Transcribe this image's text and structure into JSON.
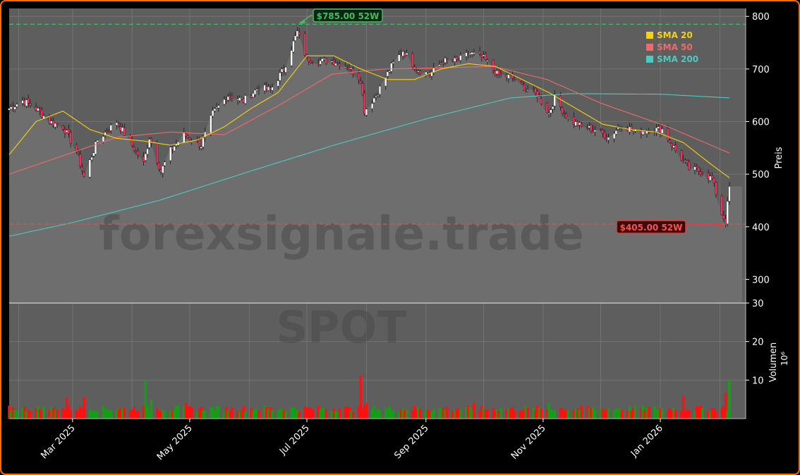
{
  "chart_data": {
    "type": "candlestick",
    "ticker_watermark": "SPOT",
    "site_watermark": "forexsignale.trade",
    "price_axis": {
      "label": "Preis",
      "ylim": [
        255,
        815
      ],
      "ticks": [
        300,
        400,
        500,
        600,
        700,
        800
      ]
    },
    "volume_axis": {
      "label": "Volumen",
      "unit_label": "10⁶",
      "ylim": [
        0,
        30
      ],
      "ticks": [
        10,
        20,
        30
      ]
    },
    "x_axis": {
      "range": [
        "2025-01-27",
        "2026-02-06"
      ],
      "ticks": [
        {
          "date": "2025-03-01",
          "label": "Mar 2025"
        },
        {
          "date": "2025-05-01",
          "label": "May 2025"
        },
        {
          "date": "2025-07-01",
          "label": "Jul 2025"
        },
        {
          "date": "2025-09-01",
          "label": "Sep 2025"
        },
        {
          "date": "2025-11-01",
          "label": "Nov 2025"
        },
        {
          "date": "2026-01-01",
          "label": "Jan 2026"
        }
      ]
    },
    "high_52w": {
      "value": 785,
      "label": "$785.00 52W",
      "date": "2025-06-26"
    },
    "low_52w": {
      "value": 405,
      "label": "$405.00 52W",
      "date": "2026-02-04"
    },
    "legend": [
      {
        "label": "SMA 20",
        "color": "#f5d10f"
      },
      {
        "label": "SMA 50",
        "color": "#f06a6a"
      },
      {
        "label": "SMA 200",
        "color": "#4dc9c2"
      }
    ],
    "close_anchors": [
      [
        "2025-01-27",
        625
      ],
      [
        "2025-02-03",
        640
      ],
      [
        "2025-02-10",
        625
      ],
      [
        "2025-02-17",
        600
      ],
      [
        "2025-02-24",
        590
      ],
      [
        "2025-03-03",
        545
      ],
      [
        "2025-03-07",
        495
      ],
      [
        "2025-03-14",
        565
      ],
      [
        "2025-03-24",
        600
      ],
      [
        "2025-03-31",
        560
      ],
      [
        "2025-04-07",
        520
      ],
      [
        "2025-04-10",
        570
      ],
      [
        "2025-04-16",
        505
      ],
      [
        "2025-04-21",
        545
      ],
      [
        "2025-04-28",
        575
      ],
      [
        "2025-05-07",
        555
      ],
      [
        "2025-05-13",
        615
      ],
      [
        "2025-05-21",
        650
      ],
      [
        "2025-05-29",
        640
      ],
      [
        "2025-06-06",
        665
      ],
      [
        "2025-06-12",
        660
      ],
      [
        "2025-06-19",
        700
      ],
      [
        "2025-06-26",
        770
      ],
      [
        "2025-07-01",
        720
      ],
      [
        "2025-07-08",
        715
      ],
      [
        "2025-07-15",
        715
      ],
      [
        "2025-07-22",
        705
      ],
      [
        "2025-07-29",
        680
      ],
      [
        "2025-07-31",
        620
      ],
      [
        "2025-08-06",
        650
      ],
      [
        "2025-08-14",
        705
      ],
      [
        "2025-08-20",
        735
      ],
      [
        "2025-08-27",
        700
      ],
      [
        "2025-09-03",
        690
      ],
      [
        "2025-09-10",
        715
      ],
      [
        "2025-09-17",
        715
      ],
      [
        "2025-09-24",
        730
      ],
      [
        "2025-10-01",
        720
      ],
      [
        "2025-10-08",
        690
      ],
      [
        "2025-10-15",
        685
      ],
      [
        "2025-10-22",
        665
      ],
      [
        "2025-10-29",
        650
      ],
      [
        "2025-11-04",
        615
      ],
      [
        "2025-11-07",
        645
      ],
      [
        "2025-11-14",
        605
      ],
      [
        "2025-11-21",
        590
      ],
      [
        "2025-11-28",
        585
      ],
      [
        "2025-12-05",
        570
      ],
      [
        "2025-12-12",
        595
      ],
      [
        "2025-12-19",
        580
      ],
      [
        "2025-12-26",
        585
      ],
      [
        "2026-01-02",
        585
      ],
      [
        "2026-01-09",
        545
      ],
      [
        "2026-01-16",
        510
      ],
      [
        "2026-01-23",
        505
      ],
      [
        "2026-01-28",
        490
      ],
      [
        "2026-02-02",
        425
      ],
      [
        "2026-02-04",
        410
      ],
      [
        "2026-02-06",
        475
      ]
    ],
    "sma20_anchors": [
      [
        "2025-01-27",
        537
      ],
      [
        "2025-02-10",
        600
      ],
      [
        "2025-02-24",
        620
      ],
      [
        "2025-03-10",
        585
      ],
      [
        "2025-03-24",
        568
      ],
      [
        "2025-04-07",
        563
      ],
      [
        "2025-04-21",
        555
      ],
      [
        "2025-05-05",
        565
      ],
      [
        "2025-05-19",
        590
      ],
      [
        "2025-06-02",
        625
      ],
      [
        "2025-06-16",
        655
      ],
      [
        "2025-07-01",
        725
      ],
      [
        "2025-07-15",
        725
      ],
      [
        "2025-07-29",
        700
      ],
      [
        "2025-08-12",
        680
      ],
      [
        "2025-08-26",
        680
      ],
      [
        "2025-09-09",
        700
      ],
      [
        "2025-09-23",
        710
      ],
      [
        "2025-10-07",
        705
      ],
      [
        "2025-10-21",
        680
      ],
      [
        "2025-11-04",
        655
      ],
      [
        "2025-11-18",
        625
      ],
      [
        "2025-12-02",
        595
      ],
      [
        "2025-12-16",
        585
      ],
      [
        "2025-12-30",
        580
      ],
      [
        "2026-01-13",
        560
      ],
      [
        "2026-01-27",
        520
      ],
      [
        "2026-02-06",
        493
      ]
    ],
    "sma50_anchors": [
      [
        "2025-01-27",
        500
      ],
      [
        "2025-02-24",
        535
      ],
      [
        "2025-03-24",
        570
      ],
      [
        "2025-04-21",
        580
      ],
      [
        "2025-05-19",
        575
      ],
      [
        "2025-06-16",
        630
      ],
      [
        "2025-07-14",
        690
      ],
      [
        "2025-08-11",
        700
      ],
      [
        "2025-09-08",
        702
      ],
      [
        "2025-10-06",
        705
      ],
      [
        "2025-11-03",
        680
      ],
      [
        "2025-12-01",
        635
      ],
      [
        "2026-01-05",
        590
      ],
      [
        "2026-02-06",
        540
      ]
    ],
    "sma200_anchors": [
      [
        "2025-01-27",
        382
      ],
      [
        "2025-03-01",
        408
      ],
      [
        "2025-04-15",
        450
      ],
      [
        "2025-06-01",
        505
      ],
      [
        "2025-07-15",
        555
      ],
      [
        "2025-09-01",
        605
      ],
      [
        "2025-10-15",
        645
      ],
      [
        "2025-11-15",
        653
      ],
      [
        "2026-01-01",
        652
      ],
      [
        "2026-02-06",
        645
      ]
    ],
    "volume_baseline": 1.8,
    "volume_spikes": [
      [
        "2025-02-26",
        5.5,
        "red"
      ],
      [
        "2025-03-07",
        5.5,
        "red"
      ],
      [
        "2025-04-08",
        10,
        "green"
      ],
      [
        "2025-04-11",
        5,
        "green"
      ],
      [
        "2025-04-29",
        4,
        "red"
      ],
      [
        "2025-07-29",
        11.2,
        "red"
      ],
      [
        "2025-08-01",
        4,
        "red"
      ],
      [
        "2025-09-26",
        4,
        "red"
      ],
      [
        "2025-11-04",
        4,
        "green"
      ],
      [
        "2026-01-13",
        6,
        "red"
      ],
      [
        "2026-02-04",
        6.8,
        "red"
      ],
      [
        "2026-02-06",
        10,
        "green"
      ]
    ]
  }
}
